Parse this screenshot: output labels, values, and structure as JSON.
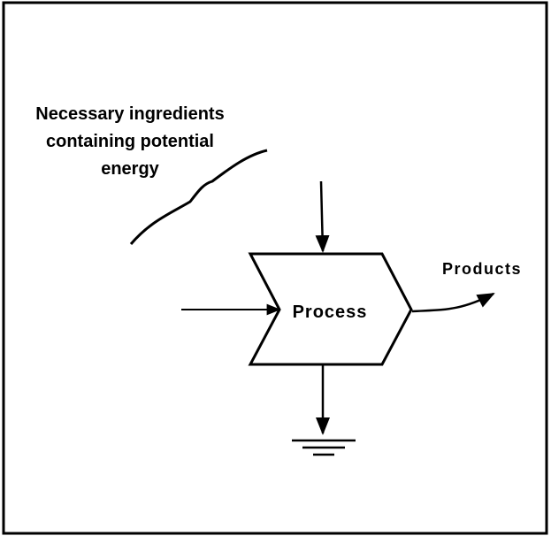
{
  "label": {
    "lines": [
      "Necessary ingredients",
      "containing potential",
      "energy"
    ]
  },
  "nodes": [
    {
      "label": "Process"
    },
    {
      "label": "Products"
    }
  ]
}
